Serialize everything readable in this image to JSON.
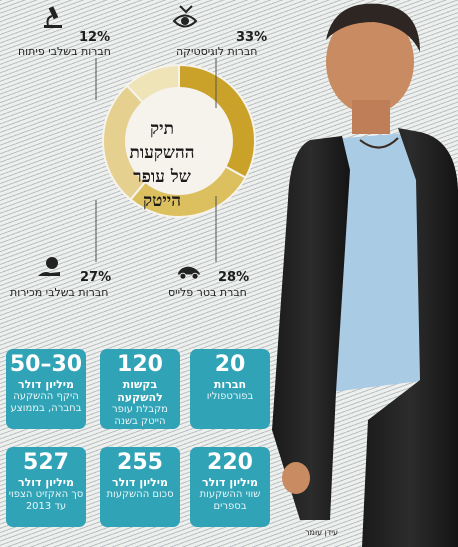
{
  "chart_data": {
    "type": "pie",
    "title": "תיק ההשקעות של עופר הייטק",
    "title_lines": [
      "תיק",
      "ההשקעות",
      "של עופר",
      "הייטק"
    ],
    "slices": [
      {
        "label": "חברות לוגיסטיקה... ",
        "value": 33,
        "display": "33%",
        "caption": "חברות לוגיסטיקה",
        "color": "#caa22a"
      },
      {
        "label": "חברת בטר פלייס",
        "value": 28,
        "display": "28%",
        "caption": "חברת בטר פלייס",
        "color": "#dcbf5e"
      },
      {
        "label": "חברות בשלבי מכירות",
        "value": 27,
        "display": "27%",
        "caption": "חברות בשלבי מכירות",
        "color": "#e6d08f"
      },
      {
        "label": "חברות בשלבי פיתוח",
        "value": 12,
        "display": "12%",
        "caption": "חברות בשלבי פיתוח",
        "color": "#efe3b8"
      }
    ]
  },
  "cards": [
    {
      "number": "20",
      "line1": "חברות",
      "line2": "בפורטפוליו"
    },
    {
      "number": "120",
      "line1": "בקשות להשקעה",
      "line2": "מקבלת עופר הייטק בשנה"
    },
    {
      "number": "50–30",
      "line1": "מיליון דולר",
      "line2": "היקף ההשקעה בחברה, בממוצע"
    },
    {
      "number": "220",
      "line1": "מיליון דולר",
      "line2": "שווי ההשקעות בספרים"
    },
    {
      "number": "255",
      "line1": "מיליון דולר",
      "line2": "סכום ההשקעות"
    },
    {
      "number": "527",
      "line1": "מיליון דולר",
      "line2": "סך האקזיט הצפוי עד 2013"
    }
  ],
  "credit": "עידן עומר",
  "colors": {
    "card": "#31a3b6",
    "gold": "#caa22a"
  },
  "icons": [
    "microscope-icon",
    "eye-icon",
    "money-hand-icon",
    "car-icon"
  ]
}
